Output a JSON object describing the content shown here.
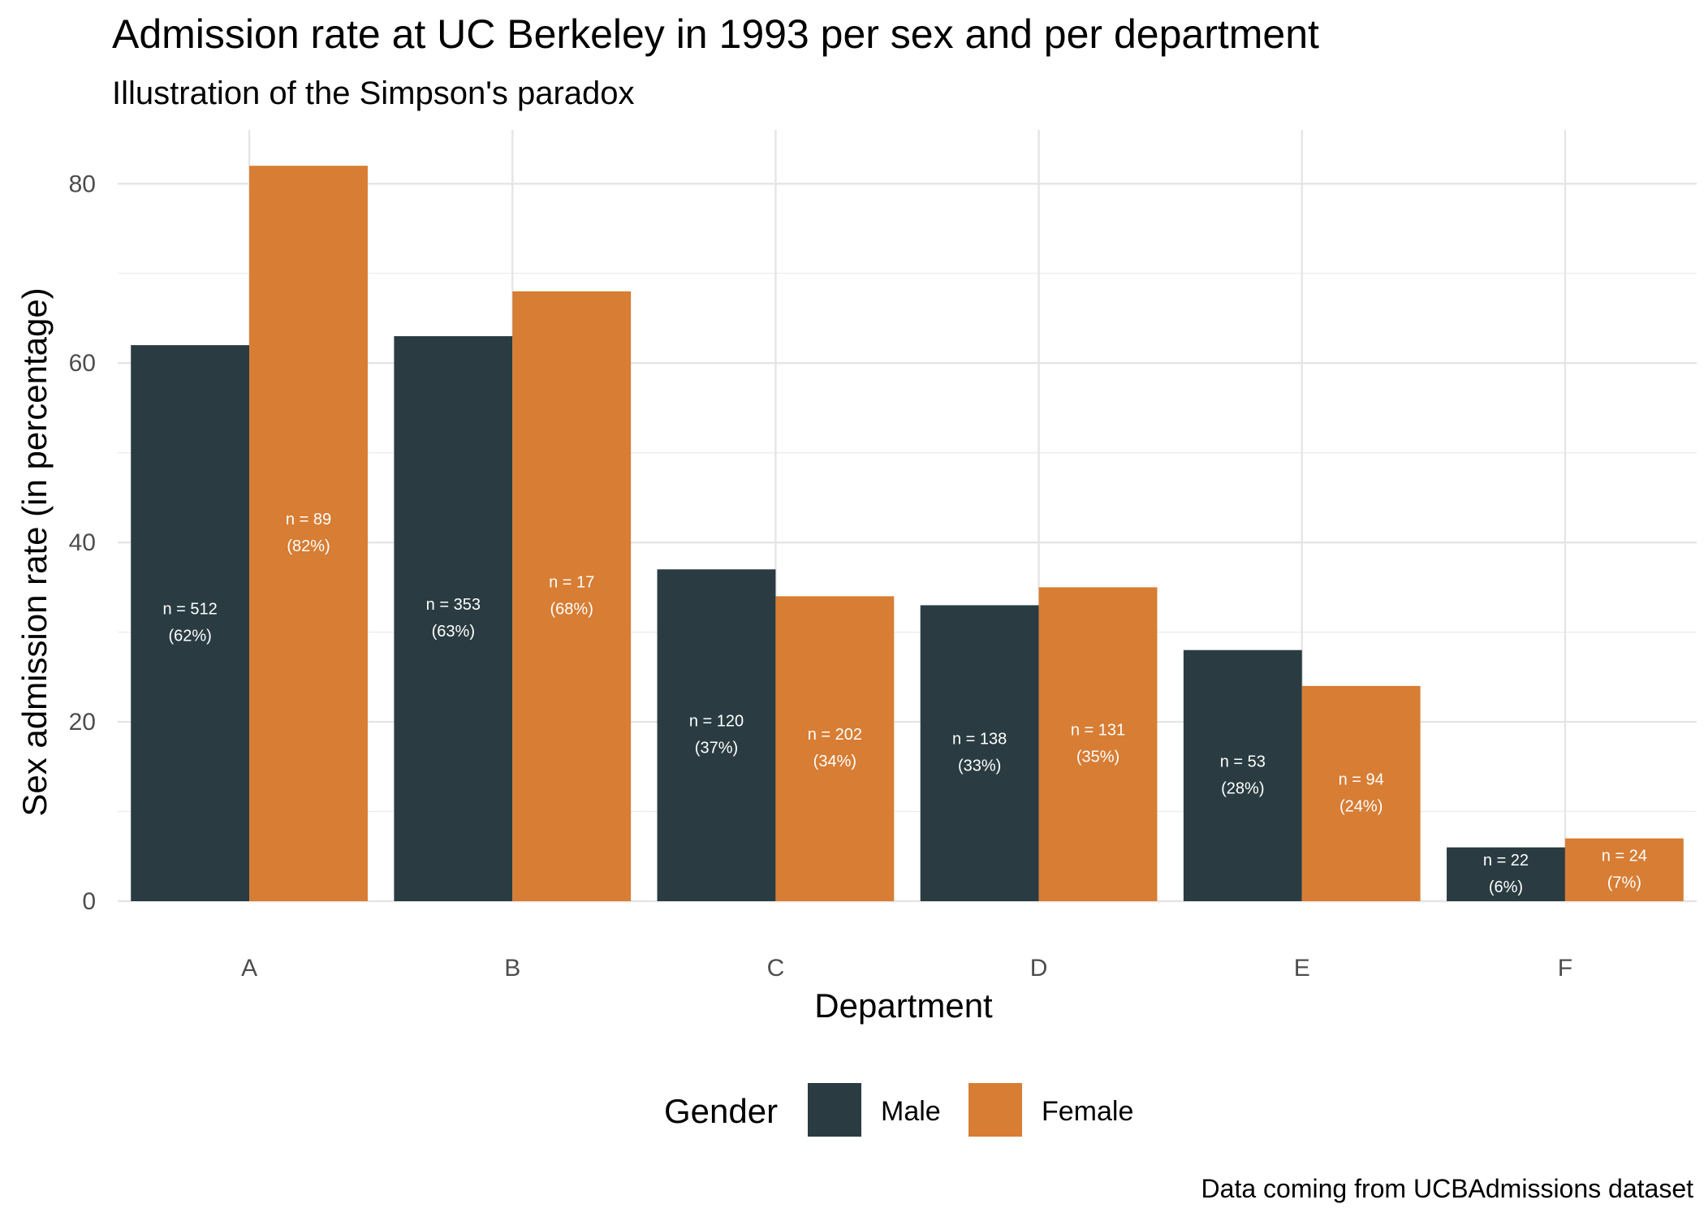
{
  "chart_data": {
    "type": "bar",
    "title": "Admission rate at UC Berkeley in 1993 per sex and per department",
    "subtitle": "Illustration of the Simpson's paradox",
    "xlabel": "Department",
    "ylabel": "Sex admission rate (in percentage)",
    "caption": "Data coming from UCBAdmissions dataset",
    "ylim": [
      0,
      86
    ],
    "yticks": [
      0,
      20,
      40,
      60,
      80
    ],
    "grid": true,
    "legend": {
      "title": "Gender",
      "position": "bottom"
    },
    "categories": [
      "A",
      "B",
      "C",
      "D",
      "E",
      "F"
    ],
    "series": [
      {
        "name": "Male",
        "color": "#2a3c42",
        "values": [
          62,
          63,
          37,
          33,
          28,
          6
        ],
        "labels": [
          [
            "n = 512",
            "(62%)"
          ],
          [
            "n = 353",
            "(63%)"
          ],
          [
            "n = 120",
            "(37%)"
          ],
          [
            "n = 138",
            "(33%)"
          ],
          [
            "n = 53",
            "(28%)"
          ],
          [
            "n = 22",
            "(6%)"
          ]
        ]
      },
      {
        "name": "Female",
        "color": "#d77d34",
        "values": [
          82,
          68,
          34,
          35,
          24,
          7
        ],
        "labels": [
          [
            "n = 89",
            "(82%)"
          ],
          [
            "n = 17",
            "(68%)"
          ],
          [
            "n = 202",
            "(34%)"
          ],
          [
            "n = 131",
            "(35%)"
          ],
          [
            "n = 94",
            "(24%)"
          ],
          [
            "n = 24",
            "(7%)"
          ]
        ]
      }
    ]
  }
}
